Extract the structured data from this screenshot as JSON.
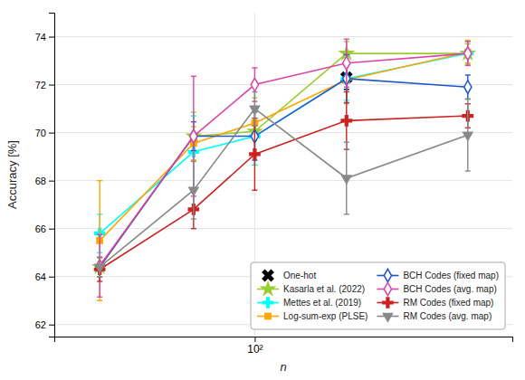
{
  "chart_data": {
    "type": "line",
    "xlabel": "n",
    "ylabel": "Accuracy [%]",
    "log": "x",
    "x": [
      31,
      63,
      100,
      200,
      500
    ],
    "xlim": [
      22,
      700
    ],
    "xticks": [
      {
        "value": 100,
        "label": "10²"
      }
    ],
    "ylim": [
      61.5,
      75.0
    ],
    "yticks": [
      62,
      64,
      66,
      68,
      70,
      72,
      74
    ],
    "grid": true,
    "legend": "lower right",
    "series": [
      {
        "name": "One-hot",
        "type": "scatter",
        "color": "black",
        "marker": "x",
        "values": [
          null,
          null,
          null,
          72.3,
          null
        ],
        "errors": [
          null,
          null,
          null,
          0.5,
          null
        ]
      },
      {
        "name": "Kasarla et al. (2022)",
        "type": "line",
        "color": "#9acd32",
        "marker": "star",
        "values": [
          64.4,
          69.85,
          70.05,
          73.3,
          73.3
        ],
        "errors": [
          0.4,
          1.0,
          1.4,
          0.5,
          0.4
        ]
      },
      {
        "name": "Mettes et al. (2019)",
        "type": "line",
        "color": "cyan",
        "marker": "plus",
        "values": [
          65.8,
          69.2,
          69.85,
          72.25,
          73.3
        ],
        "errors": [
          0.8,
          1.5,
          1.2,
          0.9,
          0.5
        ]
      },
      {
        "name": "Log-sum-exp (PLSE)",
        "type": "line",
        "color": "orange",
        "marker": "square",
        "values": [
          65.5,
          69.55,
          70.4,
          72.2,
          73.35
        ],
        "errors": [
          2.5,
          0.7,
          0.7,
          1.0,
          0.5
        ]
      },
      {
        "name": "BCH Codes (fixed map)",
        "type": "line",
        "color": "#2255cc",
        "marker": "diamond-open",
        "values": [
          64.4,
          69.85,
          69.85,
          72.25,
          71.9
        ],
        "errors": [
          0.4,
          0.6,
          1.0,
          1.0,
          0.5
        ]
      },
      {
        "name": "BCH Codes (avg. map)",
        "type": "line",
        "color": "#dd44aa",
        "marker": "diamond-open",
        "values": [
          64.45,
          69.85,
          72.0,
          72.9,
          73.3
        ],
        "errors": [
          1.3,
          2.5,
          0.7,
          1.0,
          0.5
        ]
      },
      {
        "name": "RM Codes (fixed map)",
        "type": "line",
        "color": "#cc2222",
        "marker": "plus",
        "values": [
          64.3,
          66.8,
          69.1,
          70.5,
          70.7
        ],
        "errors": [
          0.5,
          0.8,
          1.5,
          1.2,
          0.5
        ]
      },
      {
        "name": "RM Codes (avg. map)",
        "type": "line",
        "color": "#888888",
        "marker": "triangle-down",
        "values": [
          64.4,
          67.6,
          71.0,
          68.1,
          69.9
        ],
        "errors": [
          0.4,
          1.2,
          0.7,
          1.5,
          1.5
        ]
      }
    ]
  }
}
